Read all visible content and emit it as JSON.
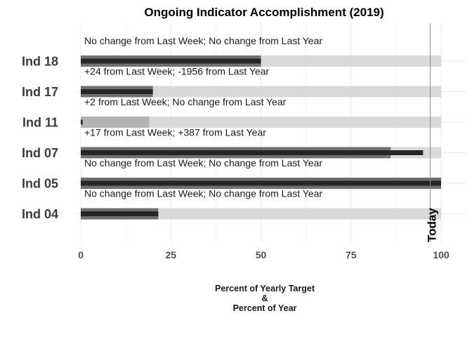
{
  "chart_data": {
    "type": "bar",
    "title": "Ongoing Indicator Accomplishment (2019)",
    "xlabel_lines": [
      "Percent of Yearly Target",
      "&",
      "Percent of Year"
    ],
    "xlim": [
      0,
      100
    ],
    "xticks": [
      0,
      25,
      50,
      75,
      100
    ],
    "grid": true,
    "today_label": "Today",
    "today_value": 97,
    "indicators": [
      {
        "name": "Ind 18",
        "target": 100,
        "year_progress": 50,
        "accomplishment": 50,
        "note": "No change from Last Week; No change from Last Year"
      },
      {
        "name": "Ind 17",
        "target": 100,
        "year_progress": 20,
        "accomplishment": 20,
        "note": "+24 from Last Week; -1956 from Last Year"
      },
      {
        "name": "Ind 11",
        "target": 100,
        "year_progress": 19,
        "accomplishment": 0.5,
        "note": "+2 from Last Week; No change from Last Year"
      },
      {
        "name": "Ind 07",
        "target": 100,
        "year_progress": 86,
        "accomplishment": 95,
        "note": "+17 from Last Week; +387 from Last Year"
      },
      {
        "name": "Ind 05",
        "target": 100,
        "year_progress": 100,
        "accomplishment": 100,
        "note": "No change from Last Week; No change from Last Year"
      },
      {
        "name": "Ind 04",
        "target": 100,
        "year_progress": 21.5,
        "accomplishment": 21.5,
        "note": "No change from Last Week; No change from Last Year"
      }
    ]
  }
}
